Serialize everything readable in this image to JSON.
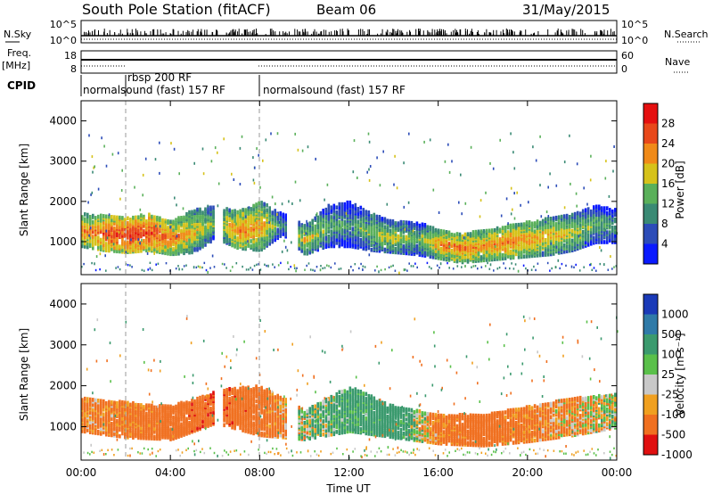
{
  "header": {
    "station": "South Pole Station (fitACF)",
    "beam": "Beam 06",
    "date": "31/May/2015"
  },
  "top_panels": {
    "nsky_label": "N.Sky",
    "nsearch_label": "N.Search",
    "freq_label": "Freq.",
    "freq_unit": "[MHz]",
    "nave_label": "Nave",
    "cpid_label": "CPID",
    "noise_ticks": [
      "10^5",
      "10^0"
    ],
    "freq_ticks": [
      "18",
      "8"
    ],
    "nave_ticks": [
      "60",
      "0"
    ],
    "cpid_segments": [
      {
        "label": "normalsound (fast) 157 RF",
        "start_hour": 0.0
      },
      {
        "label": "rbsp 200 RF",
        "start_hour": 2.0
      },
      {
        "label": "normalsound (fast) 157 RF",
        "start_hour": 8.0
      }
    ]
  },
  "x_axis": {
    "label": "Time UT",
    "ticks": [
      "00:00",
      "04:00",
      "08:00",
      "12:00",
      "16:00",
      "20:00",
      "00:00"
    ]
  },
  "power_colorbar": {
    "label": "Power [dB]",
    "ticks": [
      "4",
      "8",
      "12",
      "16",
      "20",
      "24",
      "28"
    ],
    "colors": [
      "#0a1aff",
      "#2c4cb8",
      "#3a8a74",
      "#5ab05a",
      "#d6c21a",
      "#f08a18",
      "#e8481a",
      "#e51010"
    ]
  },
  "velocity_colorbar": {
    "label": "Velocity [m s⁻¹]",
    "ticks": [
      "1000",
      "500",
      "100",
      "25",
      "-25",
      "-100",
      "-500",
      "-1000"
    ],
    "colors": [
      "#1a3ab8",
      "#2f7aa8",
      "#3b9a6e",
      "#5ac04a",
      "#c8c8c8",
      "#f0a020",
      "#f07020",
      "#e01010"
    ]
  },
  "chart_data": [
    {
      "type": "heatmap",
      "title": "Power",
      "xlabel": "Time UT",
      "ylabel": "Slant Range [km]",
      "xlim": [
        0,
        24
      ],
      "ylim": [
        180,
        4500
      ],
      "y_ticks": [
        "1000",
        "2000",
        "3000",
        "4000"
      ],
      "backscatter_band": [
        {
          "t": 0.0,
          "lo": 900,
          "hi": 1700,
          "power_db": 22
        },
        {
          "t": 1.0,
          "lo": 800,
          "hi": 1650,
          "power_db": 26
        },
        {
          "t": 2.0,
          "lo": 750,
          "hi": 1600,
          "power_db": 28
        },
        {
          "t": 3.0,
          "lo": 800,
          "hi": 1700,
          "power_db": 27
        },
        {
          "t": 4.0,
          "lo": 700,
          "hi": 1500,
          "power_db": 24
        },
        {
          "t": 5.0,
          "lo": 750,
          "hi": 1800,
          "power_db": 20
        },
        {
          "t": 6.0,
          "lo": 1100,
          "hi": 1900,
          "power_db": 14
        },
        {
          "t": 7.0,
          "lo": 850,
          "hi": 1750,
          "power_db": 24
        },
        {
          "t": 8.0,
          "lo": 800,
          "hi": 2000,
          "power_db": 22
        },
        {
          "t": 9.0,
          "lo": 1200,
          "hi": 1700,
          "power_db": 12
        },
        {
          "t": 10.0,
          "lo": 700,
          "hi": 1400,
          "power_db": 20
        },
        {
          "t": 11.0,
          "lo": 900,
          "hi": 1900,
          "power_db": 14
        },
        {
          "t": 12.0,
          "lo": 900,
          "hi": 2000,
          "power_db": 12
        },
        {
          "t": 13.0,
          "lo": 800,
          "hi": 1700,
          "power_db": 16
        },
        {
          "t": 14.0,
          "lo": 750,
          "hi": 1500,
          "power_db": 18
        },
        {
          "t": 15.0,
          "lo": 700,
          "hi": 1500,
          "power_db": 14
        },
        {
          "t": 16.0,
          "lo": 600,
          "hi": 1300,
          "power_db": 22
        },
        {
          "t": 17.0,
          "lo": 500,
          "hi": 1200,
          "power_db": 24
        },
        {
          "t": 18.0,
          "lo": 550,
          "hi": 1300,
          "power_db": 22
        },
        {
          "t": 19.0,
          "lo": 600,
          "hi": 1400,
          "power_db": 24
        },
        {
          "t": 20.0,
          "lo": 650,
          "hi": 1500,
          "power_db": 22
        },
        {
          "t": 21.0,
          "lo": 700,
          "hi": 1600,
          "power_db": 20
        },
        {
          "t": 22.0,
          "lo": 800,
          "hi": 1700,
          "power_db": 18
        },
        {
          "t": 23.0,
          "lo": 1000,
          "hi": 1900,
          "power_db": 14
        },
        {
          "t": 24.0,
          "lo": 1000,
          "hi": 1800,
          "power_db": 12
        }
      ]
    },
    {
      "type": "heatmap",
      "title": "Velocity",
      "xlabel": "Time UT",
      "ylabel": "Slant Range [km]",
      "xlim": [
        0,
        24
      ],
      "ylim": [
        180,
        4500
      ],
      "y_ticks": [
        "1000",
        "2000",
        "3000",
        "4000"
      ],
      "backscatter_band": [
        {
          "t": 0.0,
          "lo": 900,
          "hi": 1700,
          "velocity": -150
        },
        {
          "t": 2.0,
          "lo": 750,
          "hi": 1600,
          "velocity": -200
        },
        {
          "t": 4.0,
          "lo": 700,
          "hi": 1500,
          "velocity": -300
        },
        {
          "t": 6.0,
          "lo": 1100,
          "hi": 1900,
          "velocity": -400
        },
        {
          "t": 8.0,
          "lo": 800,
          "hi": 2000,
          "velocity": -300
        },
        {
          "t": 10.0,
          "lo": 700,
          "hi": 1400,
          "velocity": 50
        },
        {
          "t": 12.0,
          "lo": 900,
          "hi": 2000,
          "velocity": 200
        },
        {
          "t": 14.0,
          "lo": 750,
          "hi": 1500,
          "velocity": 300
        },
        {
          "t": 16.0,
          "lo": 600,
          "hi": 1300,
          "velocity": -200
        },
        {
          "t": 18.0,
          "lo": 550,
          "hi": 1300,
          "velocity": -300
        },
        {
          "t": 20.0,
          "lo": 650,
          "hi": 1500,
          "velocity": -200
        },
        {
          "t": 22.0,
          "lo": 800,
          "hi": 1700,
          "velocity": -100
        },
        {
          "t": 24.0,
          "lo": 1000,
          "hi": 1800,
          "velocity": 50
        }
      ]
    }
  ]
}
